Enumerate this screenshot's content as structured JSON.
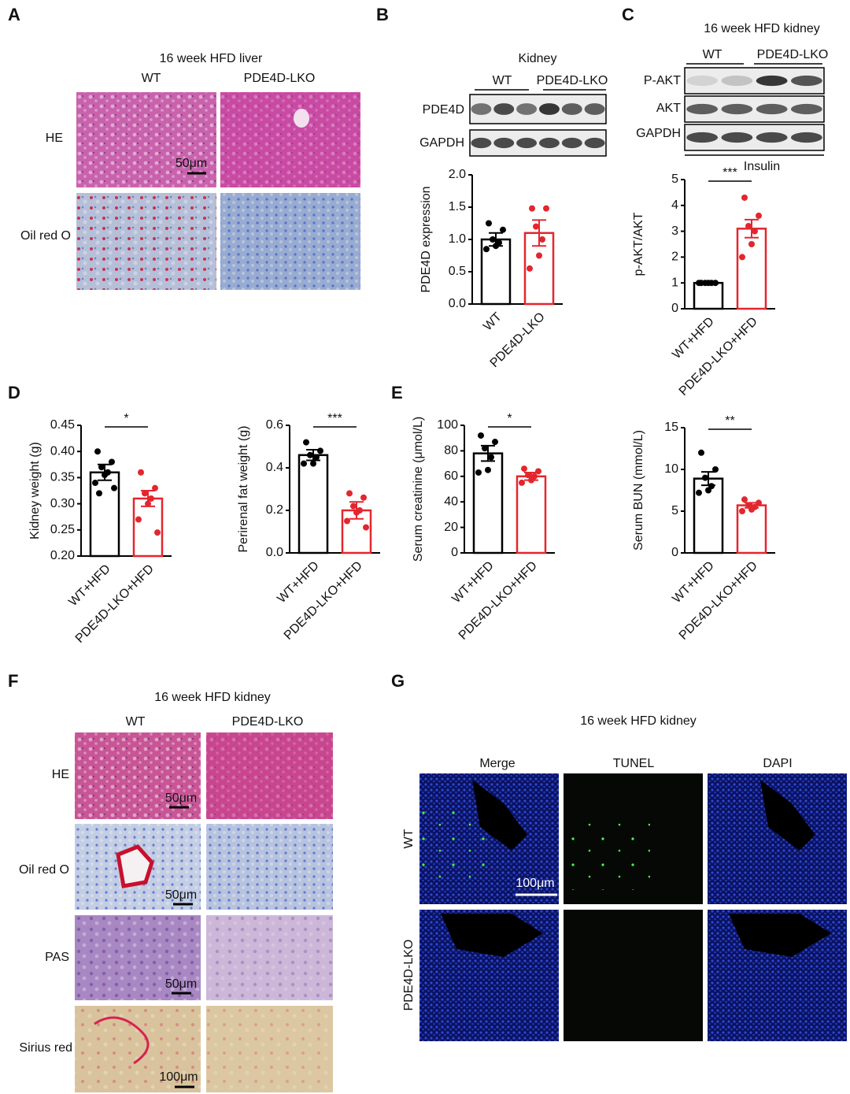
{
  "panels": {
    "A": {
      "label": "A",
      "title": "16 week HFD liver",
      "columns": [
        "WT",
        "PDE4D-LKO"
      ],
      "rows": [
        "HE",
        "Oil red O"
      ],
      "scale_bar": "50μm"
    },
    "B": {
      "label": "B",
      "blot_title": "Kidney",
      "columns": [
        "WT",
        "PDE4D-LKO"
      ],
      "blots": [
        "PDE4D",
        "GAPDH"
      ]
    },
    "C": {
      "label": "C",
      "title": "16 week HFD kidney",
      "columns": [
        "WT",
        "PDE4D-LKO"
      ],
      "blots": [
        "P-AKT",
        "AKT",
        "GAPDH"
      ],
      "treatment": "Insulin"
    },
    "D": {
      "label": "D"
    },
    "E": {
      "label": "E"
    },
    "F": {
      "label": "F",
      "title": "16 week HFD kidney",
      "columns": [
        "WT",
        "PDE4D-LKO"
      ],
      "rows": [
        "HE",
        "Oil red O",
        "PAS",
        "Sirius red"
      ],
      "scale_bars": [
        "50μm",
        "50μm",
        "50μm",
        "100μm"
      ]
    },
    "G": {
      "label": "G",
      "title": "16 week HFD kidney",
      "columns": [
        "Merge",
        "TUNEL",
        "DAPI"
      ],
      "rows": [
        "WT",
        "PDE4D-LKO"
      ],
      "scale_bar": "100μm"
    }
  },
  "chart_data": [
    {
      "type": "bar",
      "y_label": "PDE4D expression",
      "categories": [
        "WT",
        "PDE4D-LKO"
      ],
      "values": [
        1.0,
        1.1
      ],
      "errors": [
        0.1,
        0.2
      ],
      "points": [
        [
          1.25,
          1.15,
          1.0,
          0.95,
          0.9,
          0.85
        ],
        [
          1.48,
          1.48,
          1.2,
          1.0,
          0.75,
          0.55
        ]
      ],
      "colors": [
        "#000000",
        "#e3262e"
      ],
      "ylim": [
        0,
        2
      ],
      "yticks": [
        {
          "value": 0,
          "label": "0.0"
        },
        {
          "value": 0.5,
          "label": "0.5"
        },
        {
          "value": 1,
          "label": "1.0"
        },
        {
          "value": 1.5,
          "label": "1.5"
        },
        {
          "value": 2,
          "label": "2.0"
        }
      ]
    },
    {
      "type": "bar",
      "y_label": "p-AKT/AKT",
      "categories": [
        "WT+HFD",
        "PDE4D-LKO+HFD"
      ],
      "values": [
        1.0,
        3.1
      ],
      "errors": [
        0.02,
        0.35
      ],
      "points": [
        [
          1,
          1,
          1,
          1,
          1,
          1
        ],
        [
          4.3,
          3.6,
          3.2,
          3.0,
          2.5,
          2.0
        ]
      ],
      "colors": [
        "#000000",
        "#e3262e"
      ],
      "ylim": [
        0,
        5
      ],
      "yticks": [
        0,
        1,
        2,
        3,
        4,
        5
      ],
      "significance": "***"
    },
    {
      "type": "bar",
      "y_label": "Kidney weight (g)",
      "categories": [
        "WT+HFD",
        "PDE4D-LKO+HFD"
      ],
      "values": [
        0.36,
        0.31
      ],
      "errors": [
        0.015,
        0.015
      ],
      "points": [
        [
          0.4,
          0.38,
          0.37,
          0.36,
          0.355,
          0.34,
          0.33,
          0.32
        ],
        [
          0.36,
          0.33,
          0.32,
          0.31,
          0.3,
          0.27,
          0.245
        ]
      ],
      "colors": [
        "#000000",
        "#e3262e"
      ],
      "ylim": [
        0.2,
        0.45
      ],
      "yticks": [
        {
          "value": 0.2,
          "label": "0.20"
        },
        0.25,
        {
          "value": 0.3,
          "label": "0.30"
        },
        0.35,
        {
          "value": 0.4,
          "label": "0.40"
        },
        0.45
      ],
      "significance": "*"
    },
    {
      "type": "bar",
      "y_label": "Perirenal fat weight (g)",
      "categories": [
        "WT+HFD",
        "PDE4D-LKO+HFD"
      ],
      "values": [
        0.46,
        0.2
      ],
      "errors": [
        0.025,
        0.04
      ],
      "points": [
        [
          0.52,
          0.48,
          0.46,
          0.45,
          0.42,
          0.42
        ],
        [
          0.28,
          0.26,
          0.22,
          0.2,
          0.19,
          0.15,
          0.12
        ]
      ],
      "colors": [
        "#000000",
        "#e3262e"
      ],
      "ylim": [
        0,
        0.6
      ],
      "yticks": [
        {
          "value": 0,
          "label": "0.0"
        },
        0.2,
        0.4,
        0.6
      ],
      "significance": "***"
    },
    {
      "type": "bar",
      "y_label": "Serum creatinine (μmol/L)",
      "categories": [
        "WT+HFD",
        "PDE4D-LKO+HFD"
      ],
      "values": [
        78,
        60
      ],
      "errors": [
        6,
        3
      ],
      "points": [
        [
          92,
          87,
          82,
          75,
          65,
          63
        ],
        [
          66,
          64,
          61,
          60,
          57,
          55
        ]
      ],
      "colors": [
        "#000000",
        "#e3262e"
      ],
      "ylim": [
        0,
        100
      ],
      "yticks": [
        0,
        20,
        40,
        60,
        80,
        100
      ],
      "significance": "*"
    },
    {
      "type": "bar",
      "y_label": "Serum BUN (mmol/L)",
      "categories": [
        "WT+HFD",
        "PDE4D-LKO+HFD"
      ],
      "values": [
        8.9,
        5.7
      ],
      "errors": [
        0.8,
        0.3
      ],
      "points": [
        [
          12,
          10,
          9,
          8,
          7.5,
          7.2
        ],
        [
          6.4,
          6,
          5.7,
          5.5,
          5.2,
          5.0
        ]
      ],
      "colors": [
        "#000000",
        "#e3262e"
      ],
      "ylim": [
        0,
        15
      ],
      "yticks": [
        0,
        5,
        10,
        15
      ],
      "significance": "**"
    }
  ]
}
